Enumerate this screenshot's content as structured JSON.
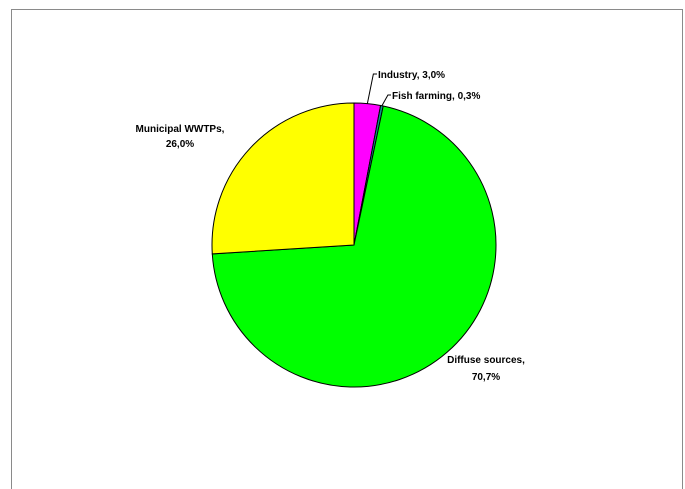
{
  "chart_data": {
    "type": "pie",
    "title": "",
    "slices": [
      {
        "label": "Industry",
        "value_text": "3,0%",
        "value": 3.0,
        "color": "#ff00ff"
      },
      {
        "label": "Fish farming",
        "value_text": "0,3%",
        "value": 0.3,
        "color": "#0a9a8a"
      },
      {
        "label": "Diffuse sources",
        "value_text": "70,7%",
        "value": 70.7,
        "color": "#00ff00"
      },
      {
        "label": "Municipal WWTPs",
        "value_text": "26,0%",
        "value": 26.0,
        "color": "#ffff00"
      }
    ],
    "start_angle": "12 o'clock, clockwise",
    "legend": "none",
    "grid": false
  }
}
